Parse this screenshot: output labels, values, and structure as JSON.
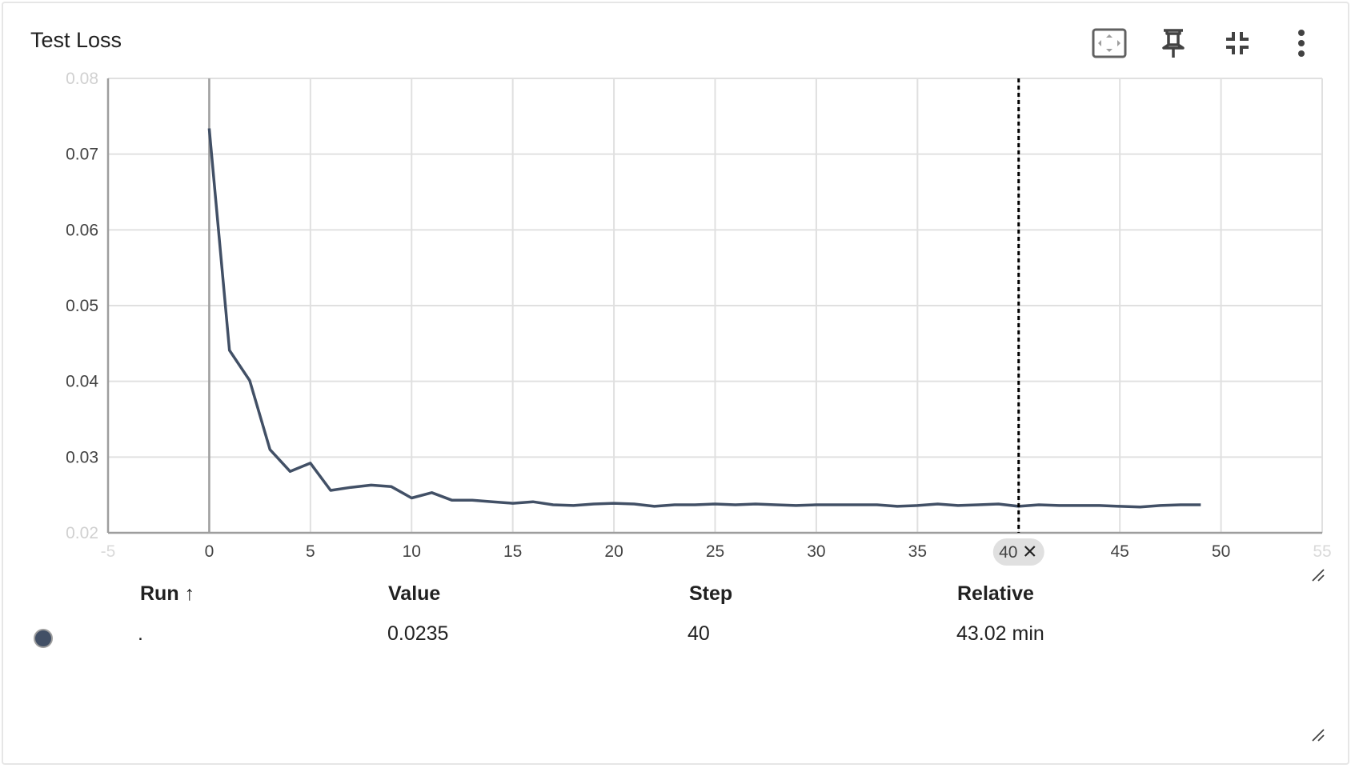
{
  "card": {
    "title": "Test Loss"
  },
  "toolbar": {
    "icons": [
      "fit-domain-icon",
      "pin-icon",
      "collapse-icon",
      "more-vert-icon"
    ]
  },
  "colors": {
    "series": "#425066",
    "grid": "#e0e0e0",
    "axis": "#9e9e9e",
    "cursor": "#000000",
    "chip": "#e0e0e0"
  },
  "cursor": {
    "step_label": "40"
  },
  "table": {
    "headers": {
      "run": "Run",
      "run_sort": "↑",
      "value": "Value",
      "step": "Step",
      "relative": "Relative"
    },
    "row": {
      "run": ".",
      "value": "0.0235",
      "step": "40",
      "relative": "43.02 min"
    }
  },
  "chart_data": {
    "type": "line",
    "title": "Test Loss",
    "xlabel": "",
    "ylabel": "",
    "xlim": [
      -5,
      55
    ],
    "ylim": [
      0.02,
      0.08
    ],
    "x_ticks": [
      -5,
      0,
      5,
      10,
      15,
      20,
      25,
      30,
      35,
      40,
      45,
      50,
      55
    ],
    "y_ticks": [
      0.02,
      0.03,
      0.04,
      0.05,
      0.06,
      0.07,
      0.08
    ],
    "grid": true,
    "cursor_step": 40,
    "series": [
      {
        "x": [
          0,
          1,
          2,
          3,
          4,
          5,
          6,
          7,
          8,
          9,
          10,
          11,
          12,
          13,
          14,
          15,
          16,
          17,
          18,
          19,
          20,
          21,
          22,
          23,
          24,
          25,
          26,
          27,
          28,
          29,
          30,
          31,
          32,
          33,
          34,
          35,
          36,
          37,
          38,
          39,
          40,
          41,
          42,
          43,
          44,
          45,
          46,
          47,
          48,
          49
        ],
        "values": [
          0.0734,
          0.0441,
          0.0401,
          0.031,
          0.0281,
          0.0292,
          0.0256,
          0.026,
          0.0263,
          0.0261,
          0.0246,
          0.0253,
          0.0243,
          0.0243,
          0.0241,
          0.0239,
          0.0241,
          0.0237,
          0.0236,
          0.0238,
          0.0239,
          0.0238,
          0.0235,
          0.0237,
          0.0237,
          0.0238,
          0.0237,
          0.0238,
          0.0237,
          0.0236,
          0.0237,
          0.0237,
          0.0237,
          0.0237,
          0.0235,
          0.0236,
          0.0238,
          0.0236,
          0.0237,
          0.0238,
          0.0235,
          0.0237,
          0.0236,
          0.0236,
          0.0236,
          0.0235,
          0.0234,
          0.0236,
          0.0237,
          0.0237
        ]
      }
    ]
  }
}
